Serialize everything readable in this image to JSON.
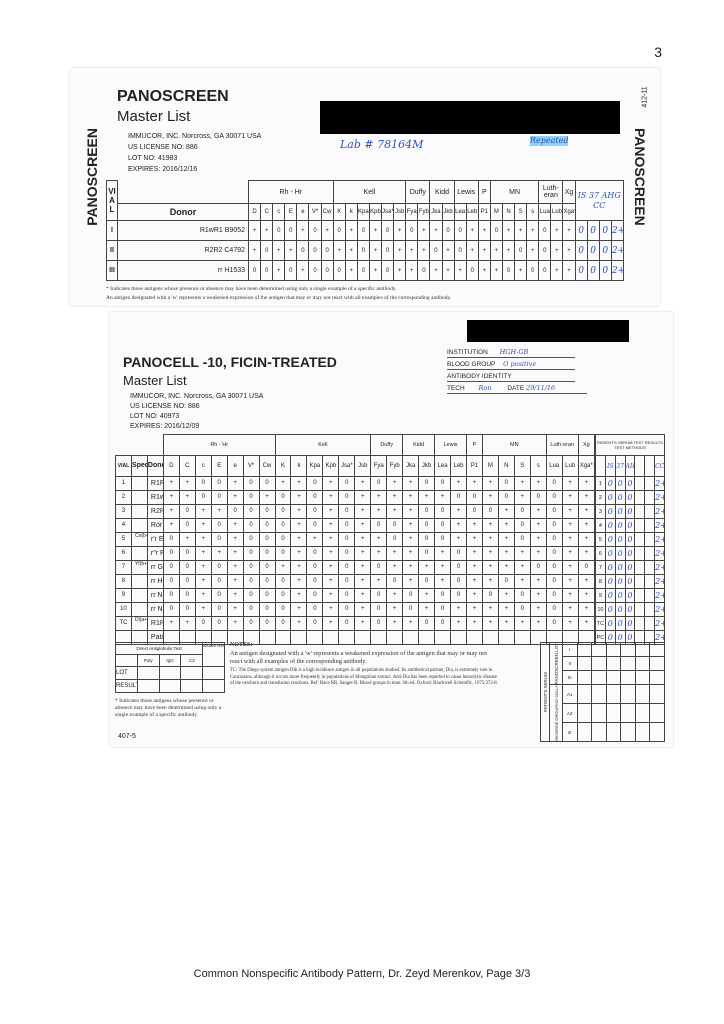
{
  "page_number": "3",
  "antigen_groups": [
    "Rh - Hr",
    "Kell",
    "Duffy",
    "Kidd",
    "Lewis",
    "P",
    "MN",
    "Luth-eran",
    "Xg"
  ],
  "antigen_group_spans": [
    7,
    6,
    2,
    2,
    2,
    1,
    4,
    2,
    1
  ],
  "antigens": [
    "D",
    "C",
    "c",
    "E",
    "e",
    "V*",
    "Cw",
    "K",
    "k",
    "Kpa",
    "Kpb",
    "Jsa*",
    "Jsb",
    "Fya",
    "Fyb",
    "Jka",
    "Jkb",
    "Lea",
    "Leb",
    "P1",
    "M",
    "N",
    "S",
    "s",
    "Lua",
    "Lub",
    "Xga*"
  ],
  "panoscreen": {
    "side_label": "PANOSCREEN",
    "title": "PANOSCREEN",
    "subtitle": "Master List",
    "company": "IMMUCOR, INC. Norcross, GA 30071  USA",
    "license": "US LICENSE NO: 886",
    "lot": "LOT NO:   41983",
    "expires": "EXPIRES:  2016/12/16",
    "form_code": "412-11",
    "vial_header": "VIAL",
    "donor_header": "Donor",
    "handwritten_lab": "Lab # 78164M",
    "handwritten_tag": "Repeated",
    "handwritten_methods": "IS 37 AHG CC",
    "rows": [
      {
        "vial": "I",
        "donor": "R1wR1 B9052",
        "vals": [
          "+",
          "+",
          "0",
          "0",
          "+",
          "0",
          "+",
          "0",
          "+",
          "0",
          "+",
          "0",
          "+",
          "0",
          "+",
          "+",
          "0",
          "0",
          "+",
          "+",
          "0",
          "+",
          "+",
          "+",
          "0",
          "+",
          "+"
        ],
        "results": [
          "0",
          "0",
          "0",
          "2+"
        ]
      },
      {
        "vial": "II",
        "donor": "R2R2 C4792",
        "vals": [
          "+",
          "0",
          "+",
          "+",
          "0",
          "0",
          "0",
          "+",
          "+",
          "0",
          "+",
          "0",
          "+",
          "+",
          "+",
          "0",
          "+",
          "0",
          "+",
          "+",
          "+",
          "+",
          "0",
          "+",
          "0",
          "+",
          "+"
        ],
        "results": [
          "0",
          "0",
          "0",
          "2+"
        ]
      },
      {
        "vial": "III",
        "donor": "rr H1533",
        "vals": [
          "0",
          "0",
          "+",
          "0",
          "+",
          "0",
          "0",
          "0",
          "+",
          "0",
          "+",
          "0",
          "+",
          "+",
          "0",
          "+",
          "+",
          "+",
          "0",
          "+",
          "+",
          "0",
          "+",
          "0",
          "0",
          "+",
          "+"
        ],
        "results": [
          "0",
          "0",
          "0",
          "2+"
        ]
      }
    ],
    "footnote1": "* Indicates those antigens whose presence or absence may have been determined using only a single example of a specific antibody.",
    "footnote2": "An antigen designated with a 'w' represents a weakened expression of the antigen that may or may not react with all examples of the corresponding antibody."
  },
  "panocell": {
    "title": "PANOCELL -10, FICIN-TREATED",
    "subtitle": "Master List",
    "company": "IMMUCOR, INC. Norcross, GA 30071  USA",
    "license": "US LICENSE NO: 886",
    "lot": "LOT NO:   40973",
    "expires": "EXPIRES: 2016/12/09",
    "institution_label": "INSTITUTION",
    "institution_value": "HGH-GB",
    "blood_group_label": "BLOOD GROUP",
    "blood_group_value": "O positive",
    "antibody_label": "ANTIBODY IDENTITY",
    "tech_label": "TECH",
    "tech_value": "Ron",
    "date_label": "DATE",
    "date_value": "29/11/16",
    "vial_header": "VIAL",
    "special_header": "Special Type",
    "donor_header": "Donor",
    "results_header": "PATIENT'S SERUM TEST RESULTS TEST METHODS",
    "methods": [
      "IS",
      "37",
      "AHG",
      "",
      "",
      "CC"
    ],
    "rows": [
      {
        "vial": "1",
        "special": "",
        "donor": "R1R1 B9443",
        "vals": [
          "+",
          "+",
          "0",
          "0",
          "+",
          "0",
          "0",
          "+",
          "+",
          "0",
          "+",
          "0",
          "+",
          "0",
          "+",
          "+",
          "0",
          "0",
          "+",
          "+",
          "+",
          "0",
          "+",
          "+",
          "0",
          "+",
          "+"
        ],
        "results": [
          "1",
          "0",
          "0",
          "0",
          "",
          "",
          "2+"
        ]
      },
      {
        "vial": "2",
        "special": "",
        "donor": "R1wR1 B9438",
        "vals": [
          "+",
          "+",
          "0",
          "0",
          "+",
          "0",
          "+",
          "0",
          "+",
          "0",
          "+",
          "0",
          "+",
          "+",
          "+",
          "+",
          "+",
          "+",
          "0",
          "0",
          "+",
          "0",
          "+",
          "0",
          "0",
          "+",
          "+"
        ],
        "results": [
          "2",
          "0",
          "0",
          "0",
          "",
          "",
          "2+"
        ]
      },
      {
        "vial": "3",
        "special": "",
        "donor": "R2R2 C5922",
        "vals": [
          "+",
          "0",
          "+",
          "+",
          "0",
          "0",
          "0",
          "0",
          "+",
          "0",
          "+",
          "0",
          "+",
          "+",
          "+",
          "+",
          "0",
          "0",
          "+",
          "0",
          "0",
          "+",
          "0",
          "+",
          "0",
          "+",
          "+"
        ],
        "results": [
          "3",
          "0",
          "0",
          "0",
          "",
          "",
          "2+"
        ]
      },
      {
        "vial": "4",
        "special": "",
        "donor": "Ror D1702",
        "vals": [
          "+",
          "0",
          "+",
          "0",
          "+",
          "0",
          "0",
          "0",
          "+",
          "0",
          "+",
          "0",
          "+",
          "0",
          "0",
          "+",
          "0",
          "0",
          "+",
          "+",
          "+",
          "+",
          "0",
          "+",
          "0",
          "+",
          "+"
        ],
        "results": [
          "4",
          "0",
          "0",
          "0",
          "",
          "",
          "2+"
        ]
      },
      {
        "vial": "5",
        "special": "Co(b+)",
        "donor": "r'r E641",
        "vals": [
          "0",
          "+",
          "+",
          "0",
          "+",
          "0",
          "0",
          "0",
          "+",
          "+",
          "+",
          "0",
          "+",
          "+",
          "0",
          "+",
          "0",
          "0",
          "+",
          "+",
          "+",
          "+",
          "0",
          "+",
          "0",
          "+",
          "+"
        ],
        "results": [
          "5",
          "0",
          "0",
          "0",
          "",
          "",
          "2+"
        ]
      },
      {
        "vial": "6",
        "special": "",
        "donor": "r\"r F917",
        "vals": [
          "0",
          "0",
          "+",
          "+",
          "+",
          "0",
          "0",
          "0",
          "+",
          "0",
          "+",
          "0",
          "+",
          "+",
          "+",
          "+",
          "0",
          "+",
          "0",
          "+",
          "+",
          "+",
          "+",
          "+",
          "0",
          "+",
          "+"
        ],
        "results": [
          "6",
          "0",
          "0",
          "0",
          "",
          "",
          "2+"
        ]
      },
      {
        "vial": "7",
        "special": "Yt(b+)",
        "donor": "rr G243",
        "vals": [
          "0",
          "0",
          "+",
          "0",
          "+",
          "0",
          "0",
          "+",
          "+",
          "0",
          "+",
          "0",
          "+",
          "0",
          "+",
          "+",
          "+",
          "+",
          "0",
          "+",
          "+",
          "+",
          "+",
          "0",
          "0",
          "+",
          "0"
        ],
        "results": [
          "7",
          "0",
          "0",
          "0",
          "",
          "",
          "2+"
        ]
      },
      {
        "vial": "8",
        "special": "",
        "donor": "rr H405",
        "vals": [
          "0",
          "0",
          "+",
          "0",
          "+",
          "0",
          "0",
          "0",
          "+",
          "0",
          "+",
          "0",
          "+",
          "+",
          "0",
          "+",
          "0",
          "+",
          "0",
          "+",
          "+",
          "0",
          "+",
          "+",
          "0",
          "+",
          "+"
        ],
        "results": [
          "8",
          "0",
          "0",
          "0",
          "",
          "",
          "2+"
        ]
      },
      {
        "vial": "9",
        "special": "",
        "donor": "rr N2942",
        "vals": [
          "0",
          "0",
          "+",
          "0",
          "+",
          "0",
          "0",
          "0",
          "+",
          "0",
          "+",
          "0",
          "+",
          "0",
          "+",
          "0",
          "+",
          "0",
          "0",
          "+",
          "0",
          "+",
          "0",
          "+",
          "0",
          "+",
          "+"
        ],
        "results": [
          "9",
          "0",
          "0",
          "0",
          "",
          "",
          "2+"
        ]
      },
      {
        "vial": "10",
        "special": "",
        "donor": "rr N3569",
        "vals": [
          "0",
          "0",
          "+",
          "0",
          "+",
          "0",
          "0",
          "0",
          "+",
          "0",
          "+",
          "0",
          "+",
          "0",
          "+",
          "0",
          "+",
          "0",
          "+",
          "+",
          "+",
          "+",
          "0",
          "+",
          "0",
          "+",
          "+"
        ],
        "results": [
          "10",
          "0",
          "0",
          "0",
          "",
          "",
          "2+"
        ]
      },
      {
        "vial": "TC",
        "special": "Di(a+)",
        "donor": "R1R1 B9439",
        "vals": [
          "+",
          "+",
          "0",
          "0",
          "+",
          "0",
          "0",
          "0",
          "+",
          "0",
          "+",
          "0",
          "+",
          "0",
          "+",
          "+",
          "0",
          "0",
          "+",
          "+",
          "+",
          "+",
          "+",
          "+",
          "0",
          "+",
          "+"
        ],
        "results": [
          "TC",
          "0",
          "0",
          "0",
          "",
          "",
          "2+"
        ]
      },
      {
        "vial": "",
        "special": "",
        "donor": "Patient's Cells",
        "vals": [
          "",
          "",
          "",
          "",
          "",
          "",
          "",
          "",
          "",
          "",
          "",
          "",
          "",
          "",
          "",
          "",
          "",
          "",
          "",
          "",
          "",
          "",
          "",
          "",
          "",
          "",
          ""
        ],
        "results": [
          "PC",
          "0",
          "0",
          "0",
          "",
          "",
          "2+"
        ]
      }
    ],
    "dat_header": "Direct Antiglobulin Test",
    "eluate_header": "Eluate Result",
    "dat_cols": [
      "Poly",
      "IgG",
      "C3"
    ],
    "dat_rows": [
      "LOT",
      "RESULT"
    ],
    "notes_title": "NOTES:",
    "notes_main": "An antigen designated with a 'w' represents a weakened expression of the antigen that may or may not react with all examples of the corresponding antibody.",
    "notes_tc": "TC:     The Diego system antigen Dib is a high incidence antigen in all populations studied. Its antithetical partner, Dia, is extremely rare in Caucasians, although it occurs more frequently in populations of Mongolian extract. Anti-Dia has been reported to cause hemolytic disease of the newborn and transfusion reactions. Ref: Race RR, Sanger R. Blood groups in man. 6th ed. Oxford: Blackwell Scientific, 1975:372-8.",
    "side_labels": [
      "PATIENT'S SERUM",
      "PANOSCREEN LOT",
      "REVERSE GROUPING CELLS"
    ],
    "lower_rows": [
      "I",
      "II",
      "III",
      "A1",
      "A2",
      "B"
    ],
    "footnote": "* Indicates those antigens whose presence or absence may have been determined using only a single example of a specific antibody.",
    "form_code": "407-5"
  },
  "footer": "Common Nonspecific Antibody Pattern, Dr. Zeyd Merenkov, Page 3/3"
}
